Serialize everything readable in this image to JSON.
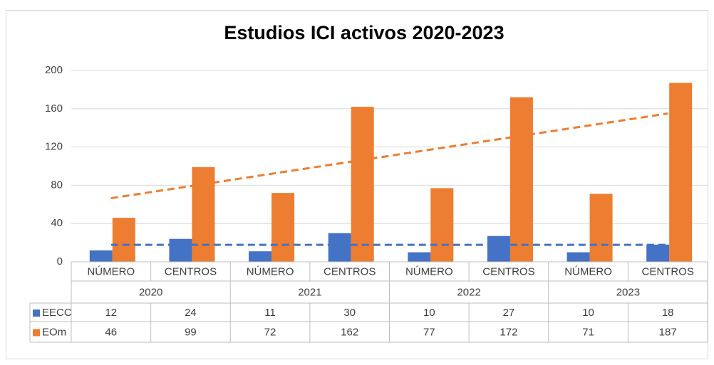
{
  "chart_data": {
    "type": "bar",
    "title": "Estudios ICI activos 2020-2023",
    "categories": [
      "NÚMERO",
      "CENTROS",
      "NÚMERO",
      "CENTROS",
      "NÚMERO",
      "CENTROS",
      "NÚMERO",
      "CENTROS"
    ],
    "groups": [
      "2020",
      "2021",
      "2022",
      "2023"
    ],
    "series": [
      {
        "name": "EECC",
        "color": "#4472c4",
        "values": [
          12,
          24,
          11,
          30,
          10,
          27,
          10,
          18
        ],
        "trendline": "linear"
      },
      {
        "name": "EOm",
        "color": "#ed7d31",
        "values": [
          46,
          99,
          72,
          162,
          77,
          172,
          71,
          187
        ],
        "trendline": "linear"
      }
    ],
    "ylim": [
      0,
      200
    ],
    "yticks": [
      0,
      40,
      80,
      120,
      160,
      200
    ],
    "grid": true,
    "data_table": true
  }
}
